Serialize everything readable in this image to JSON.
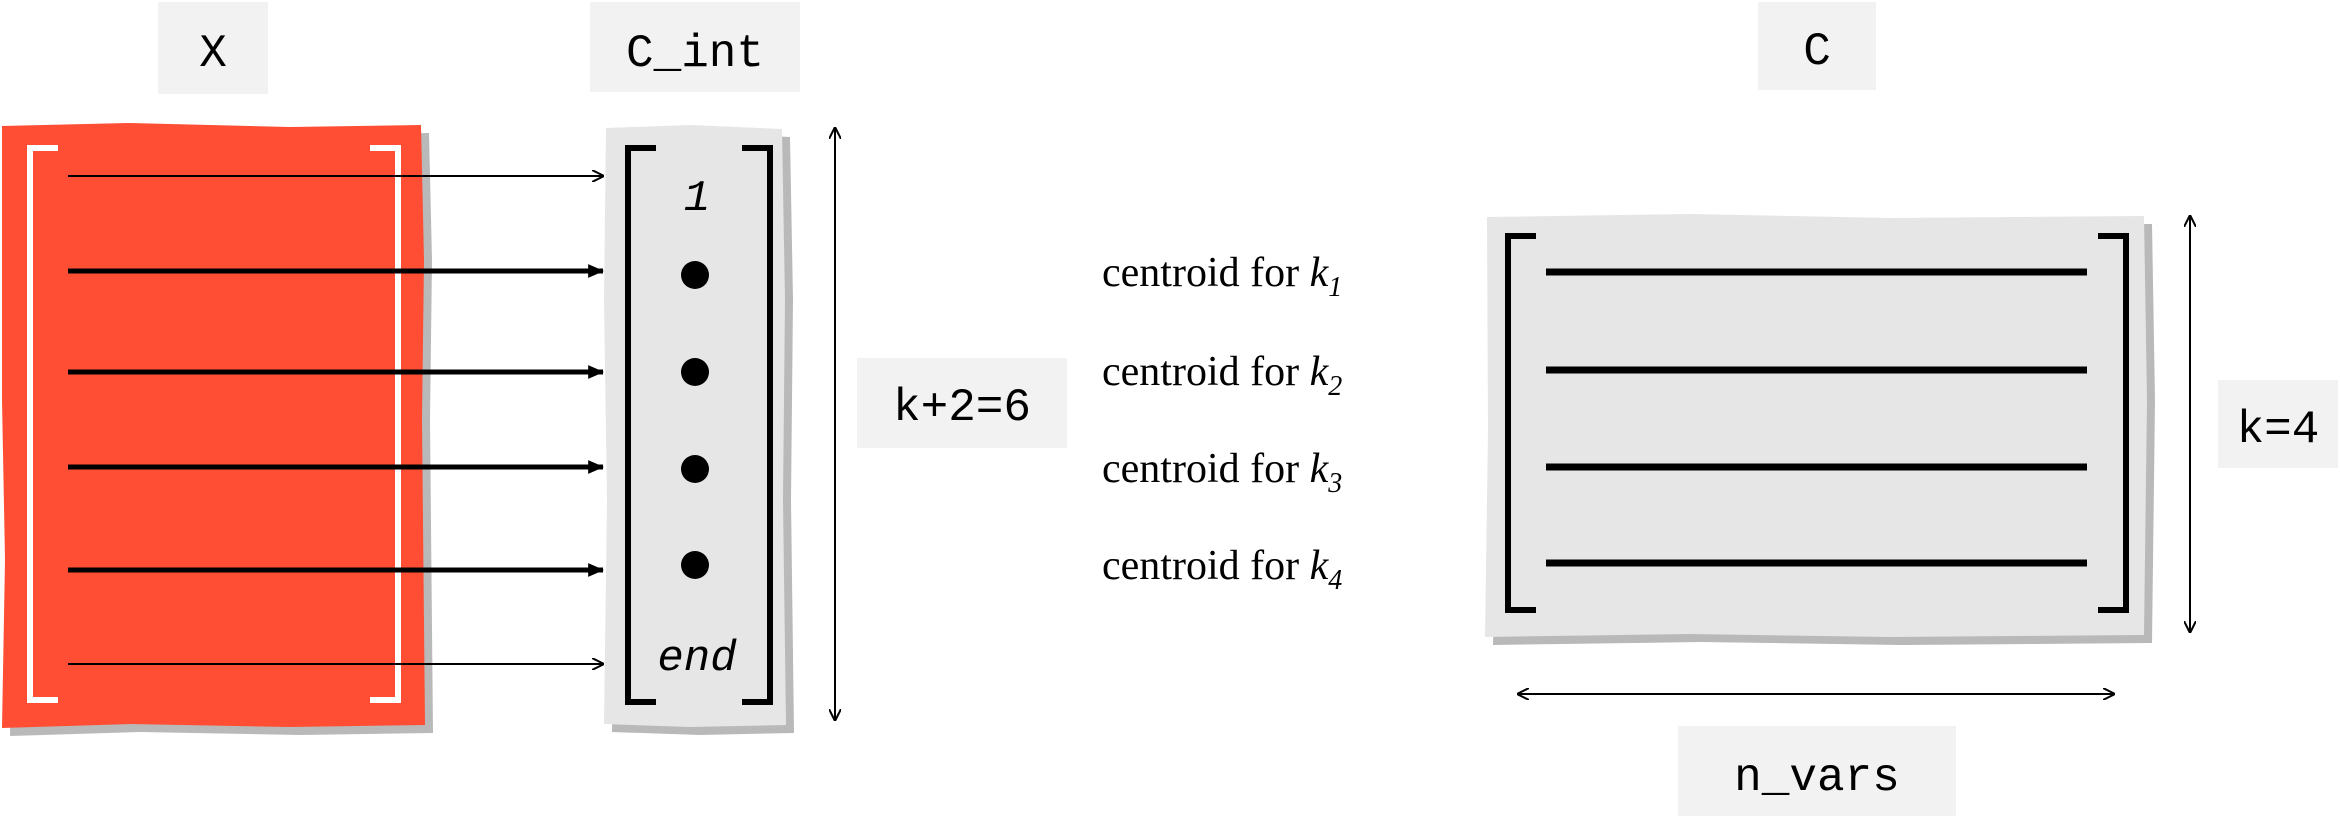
{
  "labels": {
    "x": "X",
    "c_int": "C_int",
    "c": "C",
    "height_left": "k+2=6",
    "height_right": "k=4",
    "width_right": "n_vars"
  },
  "c_int_entries": {
    "first": "1",
    "last": "end"
  },
  "centroids": [
    {
      "text": "centroid for ",
      "k": "k",
      "sub": "1"
    },
    {
      "text": "centroid for ",
      "k": "k",
      "sub": "2"
    },
    {
      "text": "centroid for ",
      "k": "k",
      "sub": "3"
    },
    {
      "text": "centroid for ",
      "k": "k",
      "sub": "4"
    }
  ],
  "colors": {
    "x_fill": "#ff4e33",
    "matrix_fill": "#e6e6e6",
    "label_bg": "#f2f2f2",
    "shadow": "#b9b9b9",
    "ink": "#000000"
  }
}
